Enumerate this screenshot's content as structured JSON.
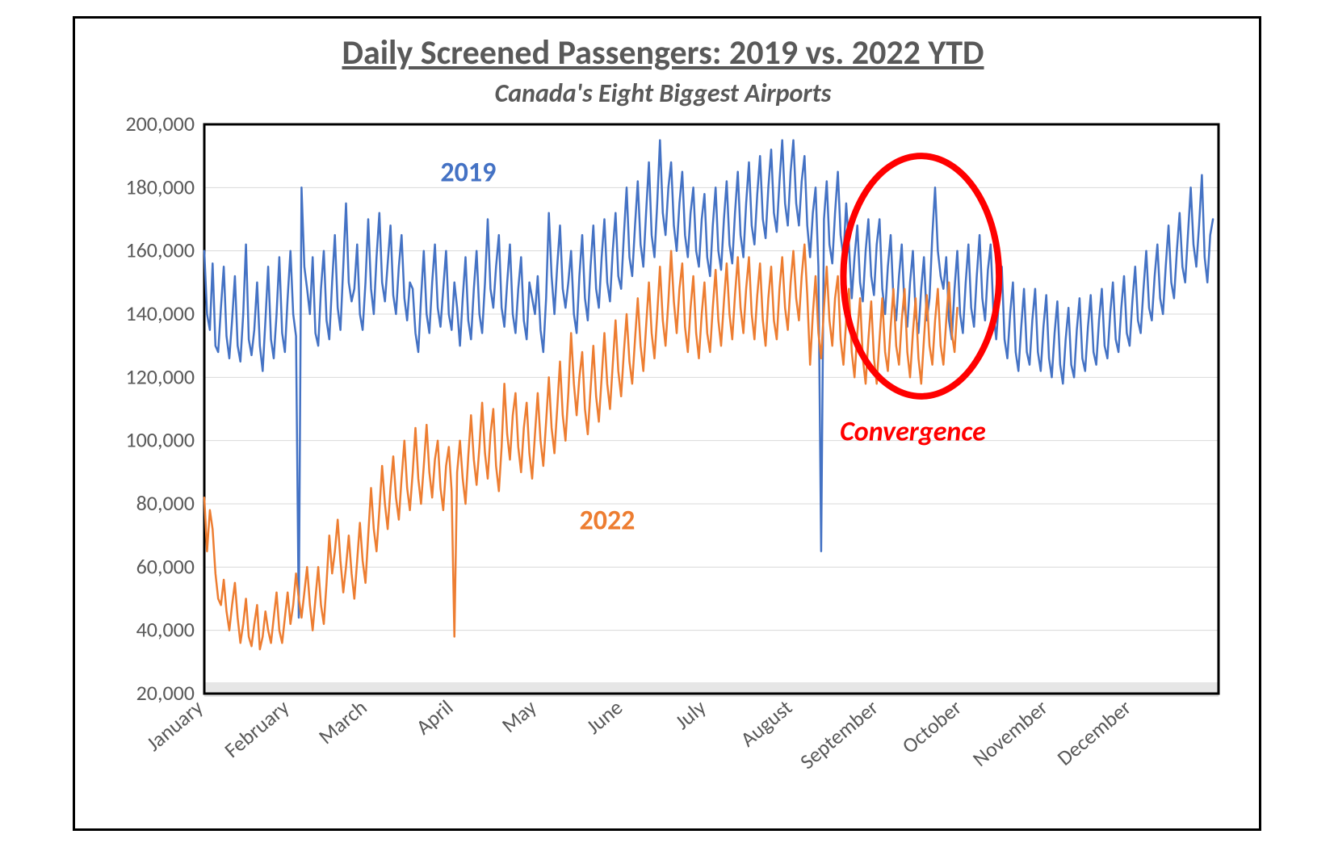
{
  "title": "Daily Screened Passengers: 2019 vs. 2022 YTD",
  "subtitle": "Canada's Eight Biggest Airports",
  "chart": {
    "type": "line",
    "background_color": "#ffffff",
    "plot_border_color": "#000000",
    "plot_border_width": 3,
    "grid_color": "#d9d9d9",
    "grid_width": 1,
    "baseline_band_color": "#e6e6e6",
    "y": {
      "min": 20000,
      "max": 200000,
      "tick_step": 20000,
      "labels": [
        "20,000",
        "40,000",
        "60,000",
        "80,000",
        "100,000",
        "120,000",
        "140,000",
        "160,000",
        "180,000",
        "200,000"
      ],
      "label_fontsize": 26,
      "label_color": "#595959"
    },
    "x": {
      "months": [
        "January",
        "February",
        "March",
        "April",
        "May",
        "June",
        "July",
        "August",
        "September",
        "October",
        "November",
        "December"
      ],
      "label_fontsize": 26,
      "label_color": "#595959",
      "label_rotation_deg": -40
    },
    "series": [
      {
        "name": "2019",
        "label": "2019",
        "color": "#4472c4",
        "stroke_width": 2.5,
        "label_x_day": 95,
        "label_y_value": 182000,
        "data": [
          160000,
          140000,
          135000,
          156000,
          130000,
          128000,
          142000,
          155000,
          133000,
          126000,
          138000,
          152000,
          130000,
          125000,
          140000,
          162000,
          132000,
          127000,
          135000,
          150000,
          130000,
          122000,
          138000,
          155000,
          132000,
          126000,
          140000,
          158000,
          134000,
          128000,
          145000,
          160000,
          140000,
          133000,
          44000,
          180000,
          155000,
          148000,
          140000,
          158000,
          134000,
          130000,
          148000,
          160000,
          138000,
          132000,
          150000,
          165000,
          142000,
          135000,
          155000,
          175000,
          150000,
          144000,
          148000,
          162000,
          140000,
          135000,
          150000,
          170000,
          148000,
          140000,
          158000,
          172000,
          150000,
          144000,
          156000,
          168000,
          146000,
          140000,
          155000,
          165000,
          145000,
          138000,
          150000,
          148000,
          134000,
          128000,
          145000,
          160000,
          140000,
          134000,
          150000,
          162000,
          142000,
          136000,
          148000,
          160000,
          140000,
          135000,
          150000,
          142000,
          130000,
          145000,
          158000,
          138000,
          132000,
          148000,
          160000,
          140000,
          134000,
          150000,
          170000,
          148000,
          142000,
          155000,
          165000,
          142000,
          136000,
          150000,
          162000,
          140000,
          134000,
          148000,
          158000,
          138000,
          132000,
          150000,
          145000,
          140000,
          152000,
          135000,
          128000,
          145000,
          172000,
          152000,
          140000,
          155000,
          168000,
          148000,
          142000,
          150000,
          160000,
          140000,
          134000,
          152000,
          165000,
          145000,
          138000,
          155000,
          168000,
          148000,
          142000,
          158000,
          170000,
          150000,
          144000,
          160000,
          172000,
          152000,
          148000,
          165000,
          180000,
          158000,
          152000,
          168000,
          182000,
          162000,
          155000,
          172000,
          188000,
          165000,
          158000,
          175000,
          195000,
          172000,
          165000,
          180000,
          188000,
          168000,
          160000,
          175000,
          185000,
          165000,
          158000,
          172000,
          180000,
          160000,
          155000,
          170000,
          178000,
          158000,
          152000,
          168000,
          180000,
          160000,
          154000,
          170000,
          182000,
          162000,
          156000,
          172000,
          185000,
          165000,
          158000,
          175000,
          188000,
          168000,
          162000,
          178000,
          190000,
          170000,
          164000,
          180000,
          192000,
          172000,
          166000,
          182000,
          195000,
          175000,
          168000,
          185000,
          195000,
          175000,
          168000,
          182000,
          190000,
          168000,
          158000,
          172000,
          180000,
          155000,
          65000,
          170000,
          182000,
          162000,
          156000,
          172000,
          185000,
          165000,
          158000,
          175000,
          162000,
          145000,
          158000,
          168000,
          150000,
          144000,
          160000,
          170000,
          152000,
          146000,
          162000,
          170000,
          148000,
          140000,
          155000,
          165000,
          145000,
          138000,
          152000,
          162000,
          142000,
          136000,
          150000,
          160000,
          140000,
          134000,
          148000,
          158000,
          138000,
          145000,
          165000,
          180000,
          160000,
          152000,
          148000,
          158000,
          138000,
          132000,
          148000,
          160000,
          140000,
          134000,
          150000,
          162000,
          142000,
          136000,
          152000,
          165000,
          145000,
          138000,
          154000,
          162000,
          140000,
          132000,
          145000,
          155000,
          132000,
          126000,
          140000,
          150000,
          128000,
          122000,
          136000,
          148000,
          128000,
          124000,
          138000,
          148000,
          128000,
          122000,
          136000,
          146000,
          126000,
          120000,
          134000,
          144000,
          124000,
          118000,
          132000,
          142000,
          124000,
          120000,
          135000,
          145000,
          126000,
          122000,
          136000,
          146000,
          128000,
          124000,
          138000,
          148000,
          130000,
          126000,
          140000,
          150000,
          132000,
          128000,
          142000,
          152000,
          134000,
          130000,
          144000,
          155000,
          138000,
          134000,
          148000,
          160000,
          142000,
          138000,
          152000,
          162000,
          145000,
          140000,
          155000,
          168000,
          150000,
          145000,
          160000,
          172000,
          155000,
          150000,
          165000,
          180000,
          162000,
          155000,
          168000,
          184000,
          158000,
          150000,
          165000,
          170000
        ]
      },
      {
        "name": "2022",
        "label": "2022",
        "color": "#ed7d31",
        "stroke_width": 2.5,
        "label_x_day": 145,
        "label_y_value": 72000,
        "data": [
          82000,
          65000,
          78000,
          72000,
          58000,
          50000,
          48000,
          56000,
          46000,
          40000,
          48000,
          55000,
          44000,
          36000,
          42000,
          50000,
          38000,
          35000,
          42000,
          48000,
          34000,
          38000,
          46000,
          40000,
          36000,
          44000,
          52000,
          40000,
          36000,
          44000,
          52000,
          42000,
          48000,
          58000,
          50000,
          44000,
          52000,
          60000,
          48000,
          40000,
          50000,
          60000,
          48000,
          42000,
          55000,
          70000,
          58000,
          65000,
          75000,
          62000,
          52000,
          60000,
          70000,
          58000,
          50000,
          62000,
          74000,
          62000,
          55000,
          70000,
          85000,
          72000,
          65000,
          78000,
          92000,
          80000,
          72000,
          85000,
          95000,
          82000,
          75000,
          88000,
          100000,
          85000,
          78000,
          90000,
          104000,
          88000,
          80000,
          92000,
          105000,
          90000,
          82000,
          94000,
          100000,
          85000,
          78000,
          92000,
          98000,
          84000,
          38000,
          90000,
          100000,
          88000,
          80000,
          95000,
          108000,
          94000,
          86000,
          98000,
          112000,
          96000,
          88000,
          102000,
          110000,
          92000,
          84000,
          98000,
          118000,
          102000,
          94000,
          108000,
          115000,
          98000,
          90000,
          104000,
          112000,
          96000,
          88000,
          102000,
          115000,
          100000,
          92000,
          106000,
          120000,
          104000,
          96000,
          110000,
          125000,
          108000,
          100000,
          115000,
          134000,
          118000,
          108000,
          120000,
          128000,
          110000,
          102000,
          116000,
          130000,
          114000,
          106000,
          120000,
          134000,
          118000,
          110000,
          124000,
          138000,
          122000,
          114000,
          128000,
          140000,
          125000,
          118000,
          132000,
          145000,
          130000,
          122000,
          136000,
          150000,
          134000,
          126000,
          140000,
          155000,
          138000,
          130000,
          144000,
          160000,
          144000,
          134000,
          148000,
          156000,
          136000,
          128000,
          142000,
          152000,
          134000,
          126000,
          140000,
          150000,
          134000,
          128000,
          142000,
          154000,
          138000,
          130000,
          144000,
          156000,
          140000,
          132000,
          146000,
          158000,
          142000,
          134000,
          148000,
          158000,
          140000,
          132000,
          146000,
          156000,
          138000,
          130000,
          145000,
          155000,
          138000,
          132000,
          148000,
          158000,
          142000,
          135000,
          150000,
          160000,
          145000,
          138000,
          152000,
          162000,
          146000,
          124000,
          140000,
          152000,
          134000,
          126000,
          142000,
          155000,
          138000,
          130000,
          145000,
          152000,
          132000,
          124000,
          138000,
          148000,
          128000,
          120000,
          134000,
          145000,
          126000,
          118000,
          132000,
          144000,
          126000,
          118000,
          132000,
          145000,
          128000,
          122000,
          136000,
          148000,
          130000,
          124000,
          138000,
          148000,
          128000,
          120000,
          134000,
          145000,
          126000,
          118000,
          132000,
          146000,
          130000,
          124000,
          138000,
          148000,
          130000,
          124000,
          138000,
          150000,
          134000,
          128000,
          142000
        ]
      }
    ],
    "annotation": {
      "text": "Convergence",
      "text_color": "#ff0000",
      "text_fontsize": 34,
      "text_italic": true,
      "text_bold": true,
      "text_x_day": 255,
      "text_y_value": 100000,
      "circle": {
        "stroke": "#ff0000",
        "stroke_width": 8,
        "cx_day": 258,
        "cy_value": 152000,
        "rx_days": 28,
        "ry_value": 38000
      }
    }
  }
}
